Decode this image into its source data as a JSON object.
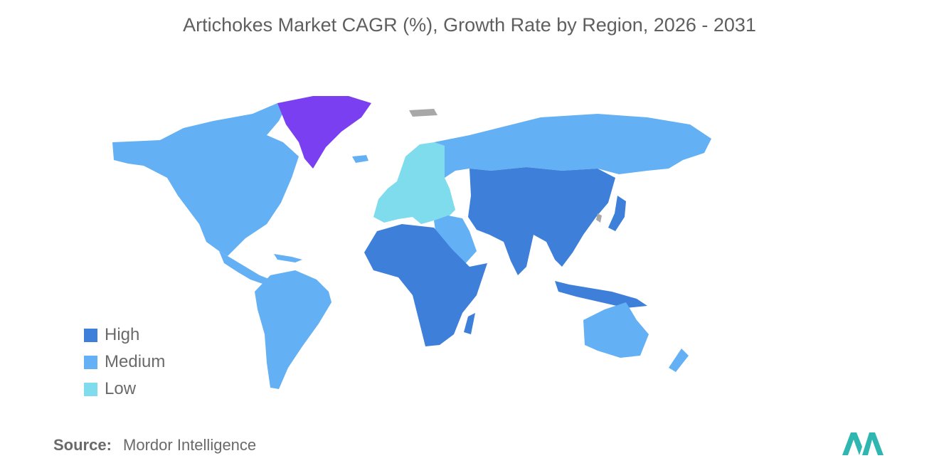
{
  "title": "Artichokes Market CAGR (%), Growth Rate by Region, 2026 - 2031",
  "legend": [
    {
      "label": "High",
      "color": "#3d7fd9"
    },
    {
      "label": "Medium",
      "color": "#64b0f5"
    },
    {
      "label": "Low",
      "color": "#7fdcec"
    }
  ],
  "highlight_color": "#7b3ff2",
  "nodata_color": "#a8a8a8",
  "source": {
    "label": "Source:",
    "value": "Mordor Intelligence"
  },
  "logo_color": "#2fb6b0"
}
